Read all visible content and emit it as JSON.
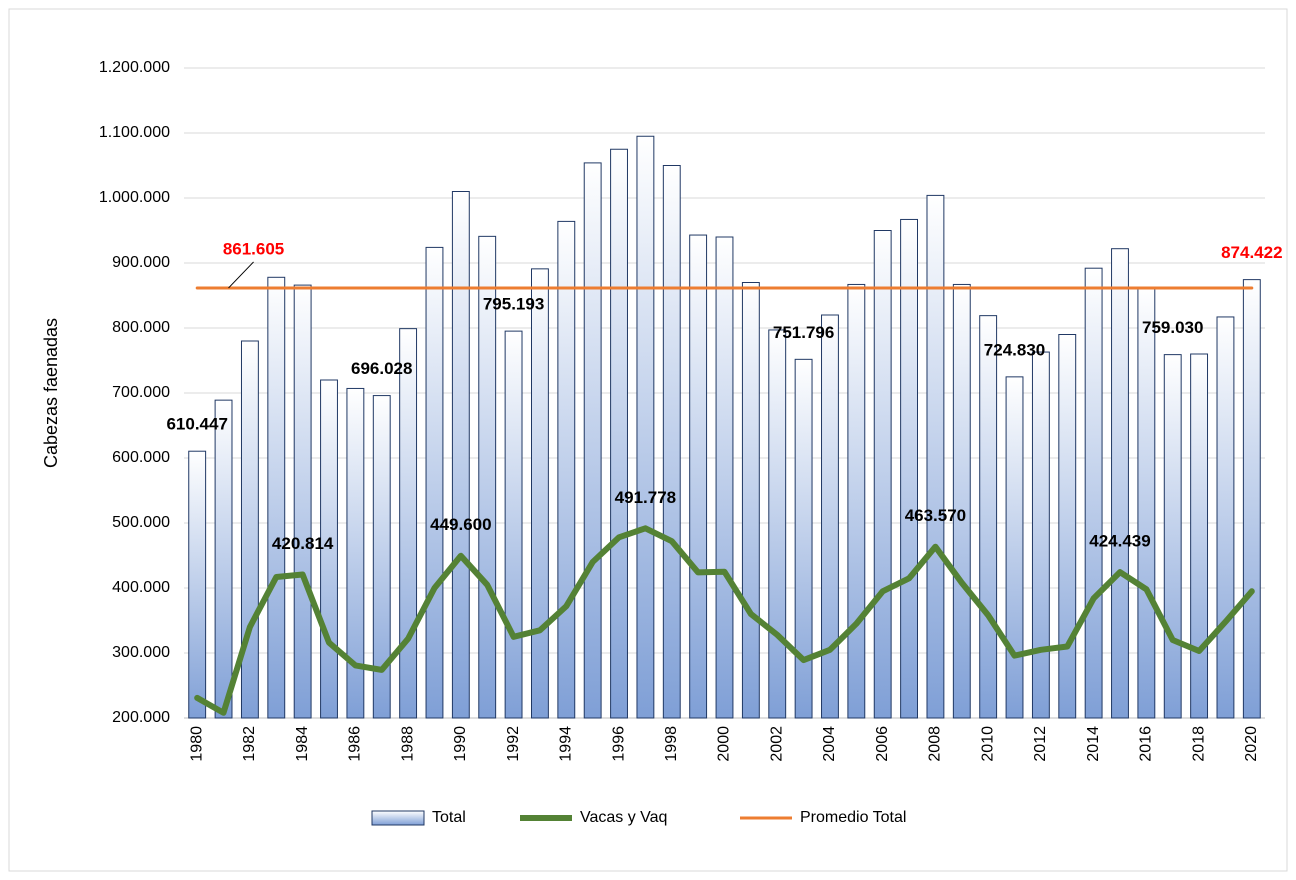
{
  "chart_data": {
    "type": "bar-line",
    "y_label": "Cabezas faenadas",
    "categories": [
      "1980",
      null,
      "1982",
      null,
      "1984",
      null,
      "1986",
      null,
      "1988",
      null,
      "1990",
      null,
      "1992",
      null,
      "1994",
      null,
      "1996",
      null,
      "1998",
      null,
      "2000",
      null,
      "2002",
      null,
      "2004",
      null,
      "2006",
      null,
      "2008",
      null,
      "2010",
      null,
      "2012",
      null,
      "2014",
      null,
      "2016",
      null,
      "2018",
      null,
      "2020"
    ],
    "ylim": [
      200000,
      1200000
    ],
    "yticks": [
      {
        "value": 200000,
        "label": "200.000"
      },
      {
        "value": 300000,
        "label": "300.000"
      },
      {
        "value": 400000,
        "label": "400.000"
      },
      {
        "value": 500000,
        "label": "500.000"
      },
      {
        "value": 600000,
        "label": "600.000"
      },
      {
        "value": 700000,
        "label": "700.000"
      },
      {
        "value": 800000,
        "label": "800.000"
      },
      {
        "value": 900000,
        "label": "900.000"
      },
      {
        "value": 1000000,
        "label": "1.000.000"
      },
      {
        "value": 1100000,
        "label": "1.100.000"
      },
      {
        "value": 1200000,
        "label": "1.200.000"
      }
    ],
    "grid": true,
    "legend": "bottom",
    "series": [
      {
        "name": "Total",
        "type": "bar",
        "color": "#7f9fd6",
        "edge_color": "#203864",
        "values": [
          610447,
          689000,
          780000,
          878000,
          866000,
          720000,
          707000,
          696028,
          799000,
          924000,
          1010000,
          941000,
          795193,
          891000,
          964000,
          1054000,
          1075000,
          1095000,
          1050000,
          943000,
          940000,
          870000,
          797000,
          751796,
          820000,
          867000,
          950000,
          967000,
          1004000,
          867000,
          819000,
          724830,
          763000,
          790000,
          892000,
          922000,
          863000,
          759030,
          760000,
          817000,
          874422
        ],
        "value_labels": [
          "610.447",
          null,
          null,
          null,
          null,
          null,
          null,
          "696.028",
          null,
          null,
          null,
          null,
          "795.193",
          null,
          null,
          null,
          null,
          null,
          null,
          null,
          null,
          null,
          null,
          "751.796",
          null,
          null,
          null,
          null,
          null,
          null,
          null,
          "724.830",
          null,
          null,
          null,
          null,
          null,
          "759.030",
          null,
          null,
          "874.422"
        ]
      },
      {
        "name": "Vacas y Vaq",
        "type": "line",
        "color": "#548235",
        "values": [
          231000,
          208000,
          340000,
          417000,
          420814,
          316000,
          281000,
          274000,
          322000,
          400000,
          449600,
          405000,
          325000,
          335000,
          372000,
          440000,
          478000,
          491778,
          472000,
          424000,
          425000,
          360000,
          328000,
          289000,
          305000,
          345000,
          395000,
          415000,
          463570,
          408000,
          358000,
          296000,
          305000,
          310000,
          384000,
          424439,
          398000,
          320000,
          303000,
          348000,
          395000
        ],
        "value_labels": [
          null,
          null,
          null,
          null,
          "420.814",
          null,
          null,
          null,
          null,
          null,
          "449.600",
          null,
          null,
          null,
          null,
          null,
          null,
          "491.778",
          null,
          null,
          null,
          null,
          null,
          null,
          null,
          null,
          null,
          null,
          "463.570",
          null,
          null,
          null,
          null,
          null,
          null,
          "424.439",
          null,
          null,
          null,
          null,
          null
        ]
      },
      {
        "name": "Promedio Total",
        "type": "line",
        "color": "#ed7d31",
        "values": [
          861605,
          861605,
          861605,
          861605,
          861605,
          861605,
          861605,
          861605,
          861605,
          861605,
          861605,
          861605,
          861605,
          861605,
          861605,
          861605,
          861605,
          861605,
          861605,
          861605,
          861605,
          861605,
          861605,
          861605,
          861605,
          861605,
          861605,
          861605,
          861605,
          861605,
          861605,
          861605,
          861605,
          861605,
          861605,
          861605,
          861605,
          861605,
          861605,
          861605,
          861605
        ],
        "value_labels": [
          null,
          "861.605",
          null,
          null,
          null,
          null,
          null,
          null,
          null,
          null,
          null,
          null,
          null,
          null,
          null,
          null,
          null,
          null,
          null,
          null,
          null,
          null,
          null,
          null,
          null,
          null,
          null,
          null,
          null,
          null,
          null,
          null,
          null,
          null,
          null,
          null,
          null,
          null,
          null,
          null,
          null
        ]
      }
    ]
  }
}
